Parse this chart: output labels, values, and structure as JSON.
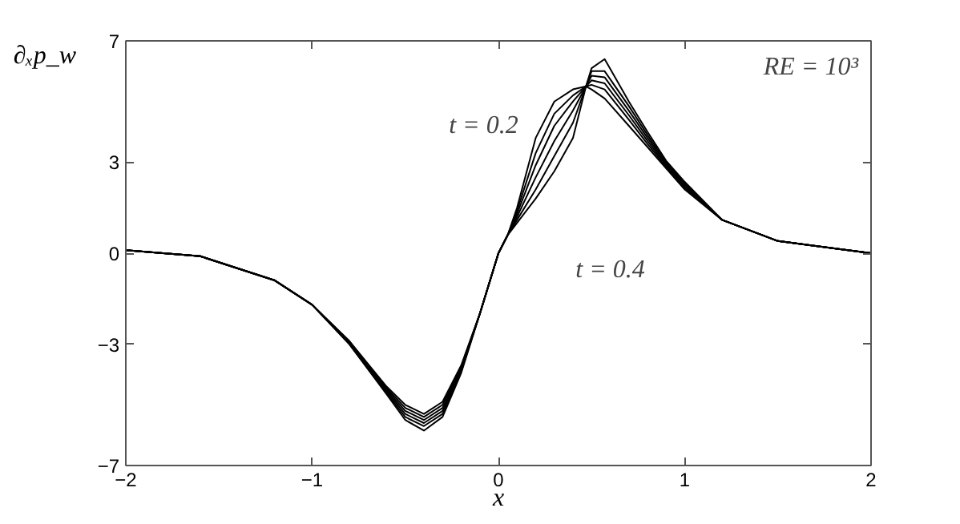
{
  "chart_data": {
    "type": "line",
    "xlabel": "x",
    "ylabel": "∂ₓp_w",
    "x": [
      -2,
      -1.6,
      -1.2,
      -1,
      -0.8,
      -0.6,
      -0.5,
      -0.4,
      -0.3,
      -0.2,
      -0.1,
      0,
      0.05,
      0.1,
      0.2,
      0.3,
      0.4,
      0.47,
      0.5,
      0.57,
      0.7,
      0.8,
      0.9,
      1,
      1.2,
      1.5,
      2
    ],
    "series": [
      {
        "color": "#000000",
        "values": [
          0.1,
          -0.1,
          -0.9,
          -1.7,
          -2.9,
          -4.4,
          -5.0,
          -5.3,
          -4.9,
          -3.7,
          -2.0,
          0,
          0.6,
          1.5,
          3.8,
          5.0,
          5.4,
          5.5,
          5.4,
          5.1,
          4.2,
          3.5,
          2.8,
          2.1,
          1.1,
          0.4,
          0.0
        ]
      },
      {
        "color": "#000000",
        "values": [
          0.1,
          -0.1,
          -0.9,
          -1.7,
          -2.9,
          -4.45,
          -5.1,
          -5.4,
          -5.0,
          -3.75,
          -2.0,
          0,
          0.6,
          1.4,
          3.3,
          4.6,
          5.2,
          5.5,
          5.55,
          5.4,
          4.4,
          3.6,
          2.85,
          2.15,
          1.1,
          0.4,
          0.0
        ]
      },
      {
        "color": "#000000",
        "values": [
          0.1,
          -0.1,
          -0.9,
          -1.7,
          -2.95,
          -4.5,
          -5.2,
          -5.5,
          -5.1,
          -3.8,
          -2.0,
          0,
          0.6,
          1.3,
          2.9,
          4.2,
          5.0,
          5.5,
          5.7,
          5.6,
          4.55,
          3.7,
          2.9,
          2.2,
          1.1,
          0.4,
          0.0
        ]
      },
      {
        "color": "#000000",
        "values": [
          0.1,
          -0.1,
          -0.9,
          -1.7,
          -2.95,
          -4.55,
          -5.3,
          -5.6,
          -5.2,
          -3.85,
          -2.0,
          0,
          0.6,
          1.2,
          2.5,
          3.7,
          4.7,
          5.5,
          5.85,
          5.8,
          4.7,
          3.8,
          2.95,
          2.25,
          1.1,
          0.4,
          0.0
        ]
      },
      {
        "color": "#000000",
        "values": [
          0.1,
          -0.1,
          -0.9,
          -1.7,
          -3.0,
          -4.6,
          -5.4,
          -5.7,
          -5.3,
          -3.9,
          -2.0,
          0,
          0.6,
          1.1,
          2.1,
          3.2,
          4.3,
          5.5,
          6.0,
          6.0,
          4.85,
          3.9,
          3.0,
          2.3,
          1.1,
          0.4,
          0.0
        ]
      },
      {
        "color": "#000000",
        "values": [
          0.1,
          -0.1,
          -0.9,
          -1.7,
          -3.0,
          -4.65,
          -5.5,
          -5.85,
          -5.4,
          -3.95,
          -2.0,
          0,
          0.6,
          1.0,
          1.8,
          2.7,
          3.8,
          5.5,
          6.1,
          6.4,
          5.0,
          4.0,
          3.05,
          2.35,
          1.1,
          0.4,
          0.0
        ]
      }
    ],
    "xlim": [
      -2,
      2
    ],
    "ylim": [
      -7,
      7
    ],
    "xticks": [
      -2,
      -1,
      0,
      1,
      2
    ],
    "yticks": [
      -7,
      -3,
      0,
      3,
      7
    ],
    "grid": false,
    "marker": "none",
    "line_style": "solid",
    "annotations": [
      "t = 0.2",
      "t = 0.4",
      "RE = 10³"
    ]
  }
}
